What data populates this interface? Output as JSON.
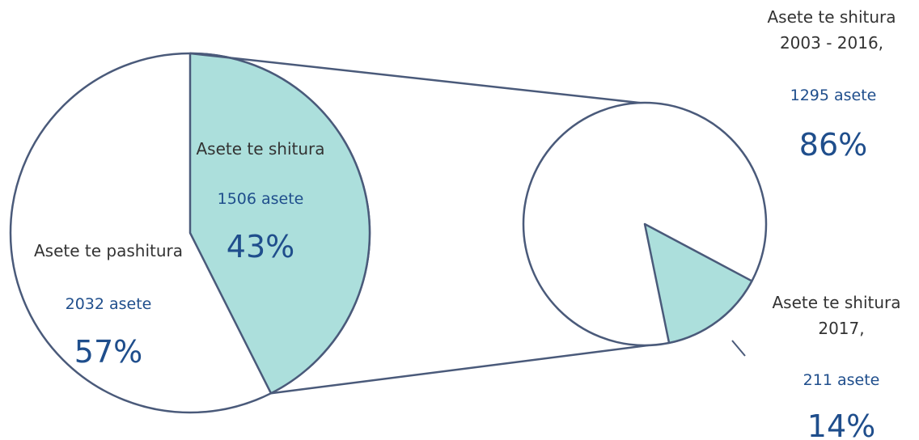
{
  "chart_data": {
    "type": "pie",
    "variant": "pie-of-pie",
    "colors": {
      "outline": "#4a5a7a",
      "highlight_fill": "#acdfdc",
      "plain_fill": "#ffffff",
      "label_text": "#333333",
      "value_text": "#1f4e8c"
    },
    "main_pie": {
      "slices": [
        {
          "name": "Asete te pashitura",
          "count_label": "2032 asete",
          "percent_label": "57%",
          "value": 2032,
          "highlight": false
        },
        {
          "name": "Asete te shitura",
          "count_label": "1506 asete",
          "percent_label": "43%",
          "value": 1506,
          "highlight": true
        }
      ]
    },
    "secondary_pie": {
      "slices": [
        {
          "name_line1": "Asete te shitura",
          "name_line2": "2003 - 2016,",
          "count_label": "1295 asete",
          "percent_label": "86%",
          "value": 1295,
          "highlight": false
        },
        {
          "name_line1": "Asete te shitura",
          "name_line2": "2017,",
          "count_label": "211 asete",
          "percent_label": "14%",
          "value": 211,
          "highlight": true
        }
      ]
    }
  }
}
